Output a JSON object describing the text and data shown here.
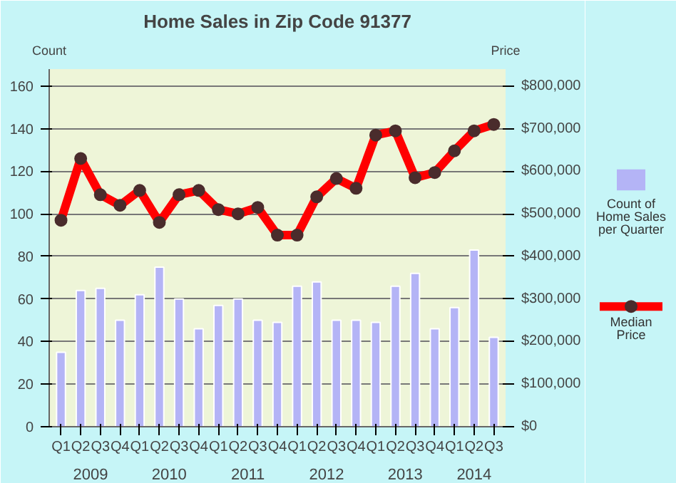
{
  "chart_data": {
    "type": "bar",
    "title": "Home Sales in Zip Code 91377",
    "categories": [
      "Q1",
      "Q2",
      "Q3",
      "Q4",
      "Q1",
      "Q2",
      "Q3",
      "Q4",
      "Q1",
      "Q2",
      "Q3",
      "Q4",
      "Q1",
      "Q2",
      "Q3",
      "Q4",
      "Q1",
      "Q2",
      "Q3",
      "Q4",
      "Q1",
      "Q2",
      "Q3"
    ],
    "annotations": [
      "2009",
      "2010",
      "2011",
      "2012",
      "2013",
      "2014"
    ],
    "ylabel": "Count",
    "y2label": "Price",
    "series": [
      {
        "name": "Count of Home Sales per Quarter",
        "color": "#b4b4f6",
        "values": [
          35,
          64,
          65,
          50,
          62,
          75,
          60,
          46,
          57,
          60,
          50,
          49,
          66,
          68,
          50,
          50,
          49,
          66,
          72,
          46,
          56,
          83,
          42
        ]
      },
      {
        "name": "Median Price",
        "type": "line",
        "axis": "y2",
        "color": "#ff0000",
        "marker": "circle",
        "values": [
          485000,
          630000,
          545000,
          520000,
          555000,
          480000,
          545000,
          555000,
          510000,
          500000,
          515000,
          450000,
          450000,
          540000,
          583000,
          560000,
          685000,
          695000,
          585000,
          597000,
          648000,
          695000,
          710000
        ]
      }
    ],
    "ylim": [
      0,
      168
    ],
    "yticks": [
      0,
      20,
      40,
      60,
      80,
      100,
      120,
      140,
      160
    ],
    "y2lim": [
      0,
      840000
    ],
    "y2ticks": [
      {
        "value": 0,
        "label": "$0"
      },
      {
        "value": 100000,
        "label": "$100,000"
      },
      {
        "value": 200000,
        "label": "$200,000"
      },
      {
        "value": 300000,
        "label": "$300,000"
      },
      {
        "value": 400000,
        "label": "$400,000"
      },
      {
        "value": 500000,
        "label": "$500,000"
      },
      {
        "value": 600000,
        "label": "$600,000"
      },
      {
        "value": 700000,
        "label": "$700,000"
      },
      {
        "value": 800000,
        "label": "$800,000"
      }
    ],
    "grid": "y",
    "legend": "right"
  }
}
